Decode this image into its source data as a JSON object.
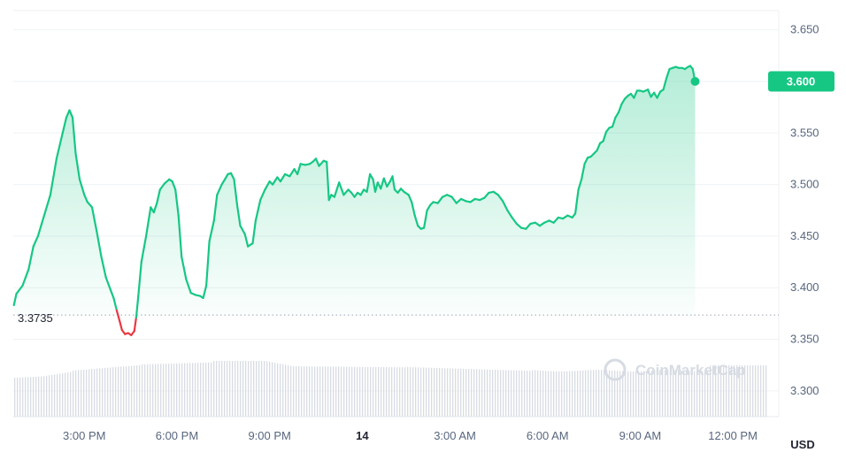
{
  "chart_data": {
    "type": "area",
    "currency_label": "USD",
    "reference_price": 3.3735,
    "reference_label": "3.3735",
    "current_price_label": "3.600",
    "watermark": "CoinMarketCap",
    "ylim": [
      3.275,
      3.66
    ],
    "xlim": [
      12.7,
      37.2
    ],
    "y_ticks": [
      {
        "value": 3.65,
        "label": "3.650"
      },
      {
        "value": 3.6,
        "label": "3.600"
      },
      {
        "value": 3.55,
        "label": "3.550"
      },
      {
        "value": 3.5,
        "label": "3.500"
      },
      {
        "value": 3.45,
        "label": "3.450"
      },
      {
        "value": 3.4,
        "label": "3.400"
      },
      {
        "value": 3.35,
        "label": "3.350"
      },
      {
        "value": 3.3,
        "label": "3.300"
      }
    ],
    "x_ticks": [
      {
        "value": 15,
        "label": "3:00 PM",
        "bold": false
      },
      {
        "value": 18,
        "label": "6:00 PM",
        "bold": false
      },
      {
        "value": 21,
        "label": "9:00 PM",
        "bold": false
      },
      {
        "value": 24,
        "label": "14",
        "bold": true
      },
      {
        "value": 27,
        "label": "3:00 AM",
        "bold": false
      },
      {
        "value": 30,
        "label": "6:00 AM",
        "bold": false
      },
      {
        "value": 33,
        "label": "9:00 AM",
        "bold": false
      },
      {
        "value": 36,
        "label": "12:00 PM",
        "bold": false
      }
    ],
    "colors": {
      "up": "#16c784",
      "down": "#ea3943",
      "grid": "#eff2f5",
      "volume": "#d8dce3"
    },
    "series": [
      {
        "values": [
          [
            12.72,
            3.383
          ],
          [
            12.8,
            3.394
          ],
          [
            13.0,
            3.402
          ],
          [
            13.2,
            3.418
          ],
          [
            13.35,
            3.44
          ],
          [
            13.5,
            3.45
          ],
          [
            13.7,
            3.47
          ],
          [
            13.9,
            3.49
          ],
          [
            14.1,
            3.525
          ],
          [
            14.3,
            3.55
          ],
          [
            14.42,
            3.565
          ],
          [
            14.52,
            3.572
          ],
          [
            14.62,
            3.565
          ],
          [
            14.72,
            3.53
          ],
          [
            14.85,
            3.505
          ],
          [
            15.0,
            3.49
          ],
          [
            15.1,
            3.483
          ],
          [
            15.25,
            3.478
          ],
          [
            15.4,
            3.455
          ],
          [
            15.55,
            3.43
          ],
          [
            15.7,
            3.41
          ],
          [
            15.85,
            3.398
          ],
          [
            15.95,
            3.39
          ],
          [
            16.05,
            3.378
          ],
          [
            16.15,
            3.367
          ],
          [
            16.22,
            3.359
          ],
          [
            16.32,
            3.355
          ],
          [
            16.42,
            3.356
          ],
          [
            16.52,
            3.354
          ],
          [
            16.62,
            3.358
          ],
          [
            16.68,
            3.371
          ],
          [
            16.75,
            3.392
          ],
          [
            16.85,
            3.425
          ],
          [
            17.0,
            3.45
          ],
          [
            17.15,
            3.478
          ],
          [
            17.25,
            3.473
          ],
          [
            17.35,
            3.482
          ],
          [
            17.45,
            3.495
          ],
          [
            17.6,
            3.501
          ],
          [
            17.75,
            3.505
          ],
          [
            17.85,
            3.503
          ],
          [
            17.95,
            3.495
          ],
          [
            18.05,
            3.47
          ],
          [
            18.15,
            3.43
          ],
          [
            18.3,
            3.408
          ],
          [
            18.45,
            3.395
          ],
          [
            18.6,
            3.393
          ],
          [
            18.75,
            3.392
          ],
          [
            18.85,
            3.39
          ],
          [
            18.95,
            3.402
          ],
          [
            19.05,
            3.445
          ],
          [
            19.2,
            3.465
          ],
          [
            19.3,
            3.49
          ],
          [
            19.45,
            3.5
          ],
          [
            19.55,
            3.505
          ],
          [
            19.65,
            3.51
          ],
          [
            19.75,
            3.511
          ],
          [
            19.85,
            3.505
          ],
          [
            19.95,
            3.48
          ],
          [
            20.05,
            3.46
          ],
          [
            20.2,
            3.452
          ],
          [
            20.3,
            3.44
          ],
          [
            20.45,
            3.443
          ],
          [
            20.55,
            3.465
          ],
          [
            20.7,
            3.485
          ],
          [
            20.85,
            3.495
          ],
          [
            21.0,
            3.503
          ],
          [
            21.1,
            3.5
          ],
          [
            21.25,
            3.507
          ],
          [
            21.35,
            3.503
          ],
          [
            21.5,
            3.51
          ],
          [
            21.65,
            3.508
          ],
          [
            21.8,
            3.515
          ],
          [
            21.9,
            3.51
          ],
          [
            22.0,
            3.52
          ],
          [
            22.15,
            3.519
          ],
          [
            22.3,
            3.52
          ],
          [
            22.4,
            3.522
          ],
          [
            22.5,
            3.525
          ],
          [
            22.6,
            3.518
          ],
          [
            22.75,
            3.523
          ],
          [
            22.85,
            3.522
          ],
          [
            22.92,
            3.485
          ],
          [
            23.0,
            3.49
          ],
          [
            23.1,
            3.488
          ],
          [
            23.25,
            3.502
          ],
          [
            23.4,
            3.49
          ],
          [
            23.55,
            3.495
          ],
          [
            23.65,
            3.492
          ],
          [
            23.75,
            3.488
          ],
          [
            23.85,
            3.492
          ],
          [
            23.95,
            3.49
          ],
          [
            24.05,
            3.495
          ],
          [
            24.15,
            3.493
          ],
          [
            24.25,
            3.51
          ],
          [
            24.35,
            3.505
          ],
          [
            24.42,
            3.493
          ],
          [
            24.5,
            3.502
          ],
          [
            24.6,
            3.496
          ],
          [
            24.7,
            3.506
          ],
          [
            24.8,
            3.498
          ],
          [
            24.9,
            3.503
          ],
          [
            24.98,
            3.508
          ],
          [
            25.05,
            3.495
          ],
          [
            25.15,
            3.492
          ],
          [
            25.25,
            3.496
          ],
          [
            25.35,
            3.493
          ],
          [
            25.5,
            3.49
          ],
          [
            25.6,
            3.483
          ],
          [
            25.7,
            3.47
          ],
          [
            25.8,
            3.46
          ],
          [
            25.9,
            3.457
          ],
          [
            26.0,
            3.458
          ],
          [
            26.1,
            3.475
          ],
          [
            26.2,
            3.48
          ],
          [
            26.3,
            3.483
          ],
          [
            26.45,
            3.482
          ],
          [
            26.6,
            3.488
          ],
          [
            26.75,
            3.49
          ],
          [
            26.9,
            3.488
          ],
          [
            27.05,
            3.482
          ],
          [
            27.2,
            3.486
          ],
          [
            27.35,
            3.484
          ],
          [
            27.5,
            3.483
          ],
          [
            27.65,
            3.486
          ],
          [
            27.8,
            3.485
          ],
          [
            27.95,
            3.487
          ],
          [
            28.1,
            3.492
          ],
          [
            28.25,
            3.493
          ],
          [
            28.4,
            3.49
          ],
          [
            28.55,
            3.484
          ],
          [
            28.7,
            3.475
          ],
          [
            28.85,
            3.468
          ],
          [
            29.0,
            3.462
          ],
          [
            29.15,
            3.458
          ],
          [
            29.3,
            3.457
          ],
          [
            29.45,
            3.462
          ],
          [
            29.6,
            3.463
          ],
          [
            29.75,
            3.46
          ],
          [
            29.9,
            3.463
          ],
          [
            30.05,
            3.465
          ],
          [
            30.2,
            3.463
          ],
          [
            30.35,
            3.468
          ],
          [
            30.5,
            3.467
          ],
          [
            30.65,
            3.47
          ],
          [
            30.8,
            3.468
          ],
          [
            30.9,
            3.472
          ],
          [
            31.0,
            3.495
          ],
          [
            31.1,
            3.505
          ],
          [
            31.2,
            3.52
          ],
          [
            31.3,
            3.526
          ],
          [
            31.4,
            3.527
          ],
          [
            31.5,
            3.53
          ],
          [
            31.6,
            3.533
          ],
          [
            31.7,
            3.54
          ],
          [
            31.8,
            3.542
          ],
          [
            31.9,
            3.551
          ],
          [
            32.0,
            3.555
          ],
          [
            32.1,
            3.556
          ],
          [
            32.2,
            3.565
          ],
          [
            32.3,
            3.57
          ],
          [
            32.4,
            3.578
          ],
          [
            32.5,
            3.583
          ],
          [
            32.6,
            3.586
          ],
          [
            32.7,
            3.588
          ],
          [
            32.8,
            3.584
          ],
          [
            32.9,
            3.591
          ],
          [
            33.0,
            3.591
          ],
          [
            33.1,
            3.59
          ],
          [
            33.25,
            3.592
          ],
          [
            33.35,
            3.585
          ],
          [
            33.45,
            3.589
          ],
          [
            33.55,
            3.584
          ],
          [
            33.65,
            3.59
          ],
          [
            33.75,
            3.592
          ],
          [
            33.85,
            3.603
          ],
          [
            33.95,
            3.612
          ],
          [
            34.05,
            3.613
          ],
          [
            34.15,
            3.614
          ],
          [
            34.25,
            3.613
          ],
          [
            34.35,
            3.613
          ],
          [
            34.45,
            3.612
          ],
          [
            34.55,
            3.614
          ],
          [
            34.62,
            3.615
          ],
          [
            34.7,
            3.612
          ],
          [
            34.78,
            3.6
          ]
        ]
      }
    ]
  }
}
